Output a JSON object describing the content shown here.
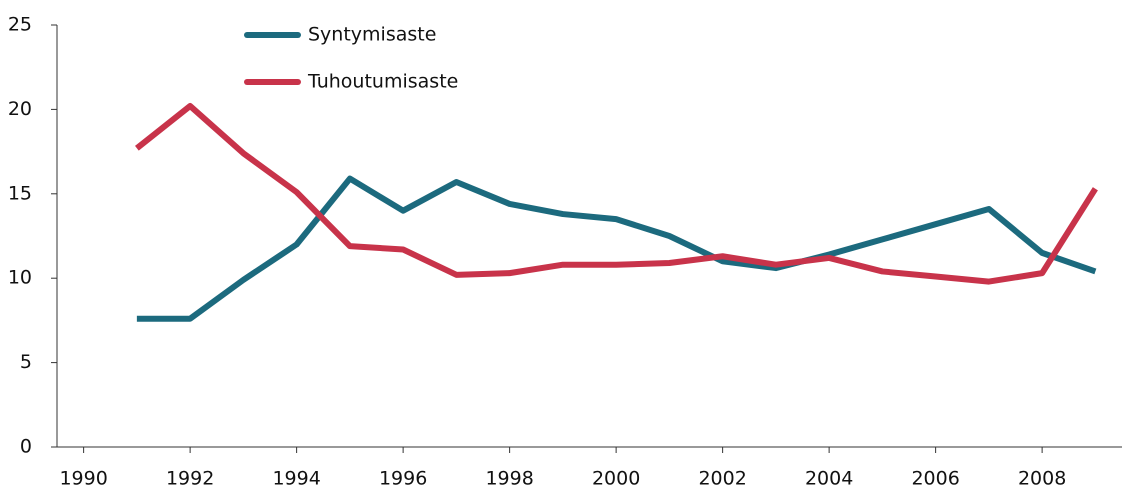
{
  "chart_data": {
    "type": "line",
    "x": [
      1991,
      1992,
      1993,
      1994,
      1995,
      1996,
      1997,
      1998,
      1999,
      2000,
      2001,
      2002,
      2003,
      2004,
      2005,
      2006,
      2007,
      2008,
      2009
    ],
    "series": [
      {
        "name": "Syntymisaste",
        "color": "#1c6a7e",
        "values": [
          7.6,
          7.6,
          9.9,
          12.0,
          15.9,
          14.0,
          15.7,
          14.4,
          13.8,
          13.5,
          12.5,
          11.0,
          10.6,
          11.4,
          12.3,
          13.2,
          14.1,
          11.5,
          10.4
        ]
      },
      {
        "name": "Tuhoutumisaste",
        "color": "#c8334a",
        "values": [
          17.7,
          20.2,
          17.4,
          15.1,
          11.9,
          11.7,
          10.2,
          10.3,
          10.8,
          10.8,
          10.9,
          11.3,
          10.8,
          11.2,
          10.4,
          10.1,
          9.8,
          10.3,
          15.3
        ]
      }
    ],
    "xlim": [
      1989.5,
      2009.5
    ],
    "xticks": [
      1990,
      1992,
      1994,
      1996,
      1998,
      2000,
      2002,
      2004,
      2006,
      2008
    ],
    "ylim": [
      0,
      25
    ],
    "yticks": [
      0,
      5,
      10,
      15,
      20,
      25
    ],
    "grid": false
  }
}
